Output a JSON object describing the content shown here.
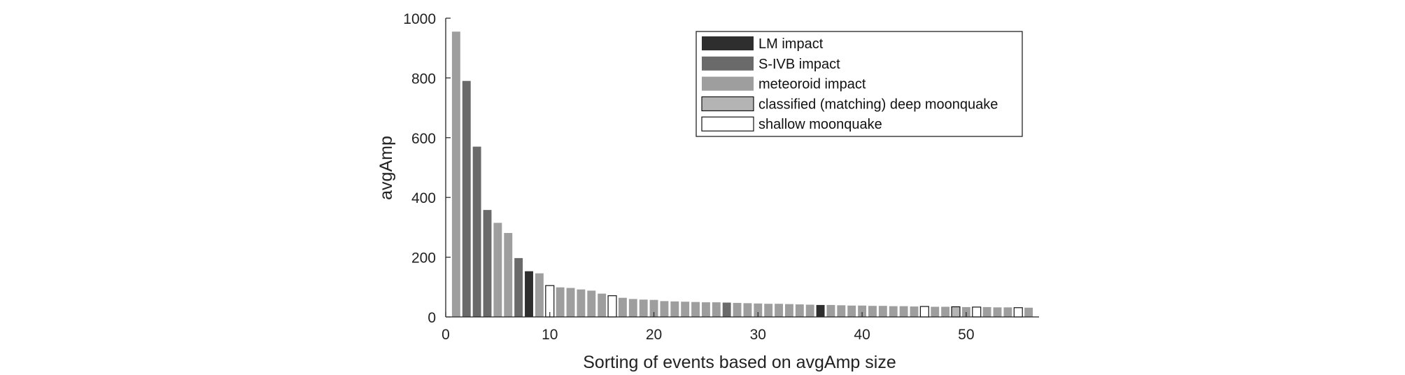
{
  "chart_data": {
    "type": "bar",
    "xlabel": "Sorting of events based on avgAmp size",
    "ylabel": "avgAmp",
    "xlim": [
      0,
      57
    ],
    "ylim": [
      0,
      1000
    ],
    "xticks": [
      0,
      10,
      20,
      30,
      40,
      50
    ],
    "yticks": [
      0,
      200,
      400,
      600,
      800,
      1000
    ],
    "legend_position": "top-right",
    "grid": false,
    "categories_legend": [
      {
        "key": "lm",
        "label": "LM impact",
        "color": "#2e2e2e",
        "stroke": "#2e2e2e"
      },
      {
        "key": "sivb",
        "label": "S-IVB impact",
        "color": "#6a6a6a",
        "stroke": "#6a6a6a"
      },
      {
        "key": "met",
        "label": "meteoroid impact",
        "color": "#9e9e9e",
        "stroke": "#9e9e9e"
      },
      {
        "key": "deep",
        "label": "classified (matching) deep moonquake",
        "color": "#b4b4b4",
        "stroke": "#111111"
      },
      {
        "key": "shallow",
        "label": "shallow moonquake",
        "color": "#ffffff",
        "stroke": "#111111"
      }
    ],
    "bars": [
      {
        "x": 1,
        "value": 955,
        "category": "met"
      },
      {
        "x": 2,
        "value": 790,
        "category": "sivb"
      },
      {
        "x": 3,
        "value": 570,
        "category": "sivb"
      },
      {
        "x": 4,
        "value": 358,
        "category": "sivb"
      },
      {
        "x": 5,
        "value": 315,
        "category": "met"
      },
      {
        "x": 6,
        "value": 281,
        "category": "met"
      },
      {
        "x": 7,
        "value": 197,
        "category": "sivb"
      },
      {
        "x": 8,
        "value": 153,
        "category": "lm"
      },
      {
        "x": 9,
        "value": 146,
        "category": "met"
      },
      {
        "x": 10,
        "value": 105,
        "category": "shallow"
      },
      {
        "x": 11,
        "value": 99,
        "category": "met"
      },
      {
        "x": 12,
        "value": 97,
        "category": "met"
      },
      {
        "x": 13,
        "value": 92,
        "category": "met"
      },
      {
        "x": 14,
        "value": 88,
        "category": "met"
      },
      {
        "x": 15,
        "value": 78,
        "category": "met"
      },
      {
        "x": 16,
        "value": 71,
        "category": "shallow"
      },
      {
        "x": 17,
        "value": 64,
        "category": "met"
      },
      {
        "x": 18,
        "value": 60,
        "category": "met"
      },
      {
        "x": 19,
        "value": 58,
        "category": "met"
      },
      {
        "x": 20,
        "value": 57,
        "category": "met"
      },
      {
        "x": 21,
        "value": 53,
        "category": "met"
      },
      {
        "x": 22,
        "value": 52,
        "category": "met"
      },
      {
        "x": 23,
        "value": 51,
        "category": "met"
      },
      {
        "x": 24,
        "value": 50,
        "category": "met"
      },
      {
        "x": 25,
        "value": 49,
        "category": "met"
      },
      {
        "x": 26,
        "value": 49,
        "category": "met"
      },
      {
        "x": 27,
        "value": 48,
        "category": "sivb"
      },
      {
        "x": 28,
        "value": 47,
        "category": "met"
      },
      {
        "x": 29,
        "value": 46,
        "category": "met"
      },
      {
        "x": 30,
        "value": 45,
        "category": "met"
      },
      {
        "x": 31,
        "value": 44,
        "category": "met"
      },
      {
        "x": 32,
        "value": 44,
        "category": "met"
      },
      {
        "x": 33,
        "value": 43,
        "category": "met"
      },
      {
        "x": 34,
        "value": 42,
        "category": "met"
      },
      {
        "x": 35,
        "value": 41,
        "category": "met"
      },
      {
        "x": 36,
        "value": 40,
        "category": "lm"
      },
      {
        "x": 37,
        "value": 40,
        "category": "met"
      },
      {
        "x": 38,
        "value": 39,
        "category": "met"
      },
      {
        "x": 39,
        "value": 38,
        "category": "met"
      },
      {
        "x": 40,
        "value": 38,
        "category": "met"
      },
      {
        "x": 41,
        "value": 37,
        "category": "met"
      },
      {
        "x": 42,
        "value": 37,
        "category": "met"
      },
      {
        "x": 43,
        "value": 36,
        "category": "met"
      },
      {
        "x": 44,
        "value": 36,
        "category": "met"
      },
      {
        "x": 45,
        "value": 35,
        "category": "met"
      },
      {
        "x": 46,
        "value": 35,
        "category": "shallow"
      },
      {
        "x": 47,
        "value": 34,
        "category": "met"
      },
      {
        "x": 48,
        "value": 34,
        "category": "met"
      },
      {
        "x": 49,
        "value": 34,
        "category": "deep"
      },
      {
        "x": 50,
        "value": 33,
        "category": "met"
      },
      {
        "x": 51,
        "value": 33,
        "category": "shallow"
      },
      {
        "x": 52,
        "value": 33,
        "category": "met"
      },
      {
        "x": 53,
        "value": 32,
        "category": "met"
      },
      {
        "x": 54,
        "value": 32,
        "category": "met"
      },
      {
        "x": 55,
        "value": 31,
        "category": "shallow"
      },
      {
        "x": 56,
        "value": 31,
        "category": "met"
      }
    ]
  }
}
